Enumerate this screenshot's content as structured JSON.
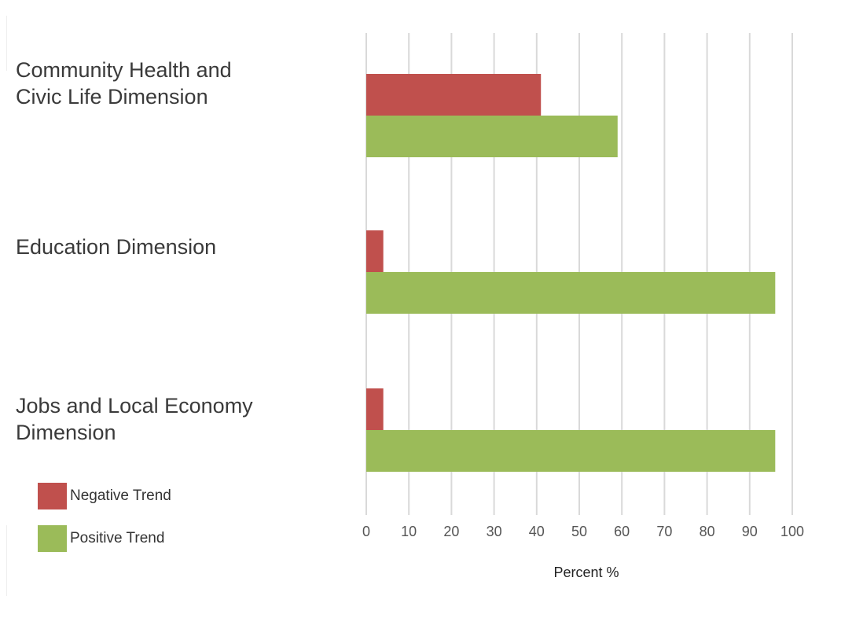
{
  "chart_data": {
    "type": "bar",
    "orientation": "horizontal",
    "categories": [
      "Community Health and Civic Life Dimension",
      "Education Dimension",
      "Jobs and Local Economy Dimension"
    ],
    "category_lines": [
      [
        "Community Health and",
        "Civic Life Dimension"
      ],
      [
        "Education Dimension"
      ],
      [
        "Jobs and Local Economy",
        "Dimension"
      ]
    ],
    "series": [
      {
        "name": "Negative Trend",
        "color": "#c0504d",
        "values": [
          41,
          4,
          4
        ]
      },
      {
        "name": "Positive Trend",
        "color": "#9bbb59",
        "values": [
          59,
          96,
          96
        ]
      }
    ],
    "xlabel": "Percent %",
    "xlim": [
      0,
      100
    ],
    "xticks": [
      "0",
      "10",
      "20",
      "30",
      "40",
      "50",
      "60",
      "70",
      "80",
      "90",
      "100"
    ],
    "grid": true,
    "legend_position": "bottom-left"
  }
}
